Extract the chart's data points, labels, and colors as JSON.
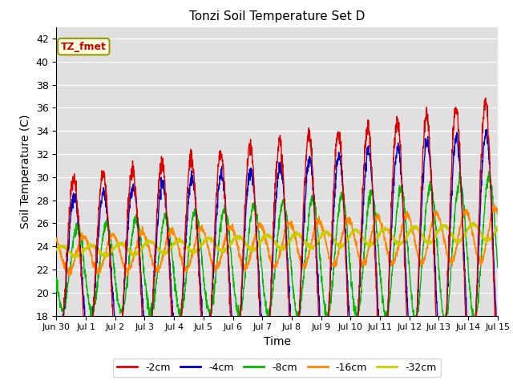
{
  "title": "Tonzi Soil Temperature Set D",
  "xlabel": "Time",
  "ylabel": "Soil Temperature (C)",
  "annotation": "TZ_fmet",
  "ylim": [
    18,
    43
  ],
  "yticks": [
    18,
    20,
    22,
    24,
    26,
    28,
    30,
    32,
    34,
    36,
    38,
    40,
    42
  ],
  "xtick_labels": [
    "Jun 30",
    "Jul 1",
    "Jul 2",
    "Jul 3",
    "Jul 4",
    "Jul 5",
    "Jul 6",
    "Jul 7",
    "Jul 8",
    "Jul 9",
    "Jul 10",
    "Jul 11",
    "Jul 12",
    "Jul 13",
    "Jul 14",
    "Jul 15"
  ],
  "series_colors": [
    "#dd0000",
    "#0000cc",
    "#00bb00",
    "#ff8800",
    "#cccc00"
  ],
  "series_labels": [
    "-2cm",
    "-4cm",
    "-8cm",
    "-16cm",
    "-32cm"
  ],
  "background_color": "#e0e0e0",
  "n_days": 15,
  "points_per_day": 144
}
